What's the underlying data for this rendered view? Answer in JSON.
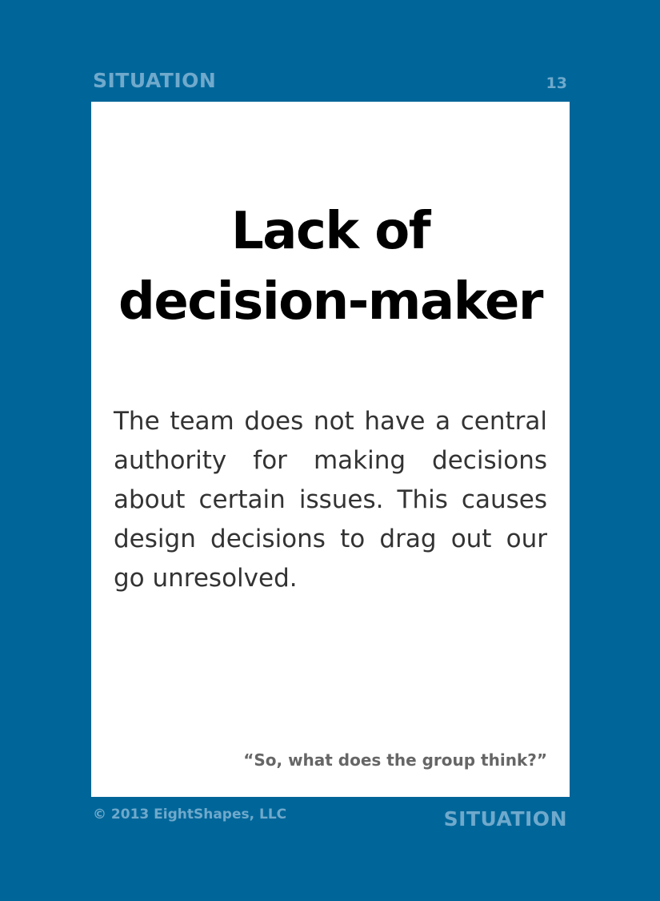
{
  "header": {
    "category": "SITUATION",
    "card_number": "13"
  },
  "card": {
    "title_line1": "Lack of",
    "title_line2": "decision-maker",
    "body": "The team does not have a central authority for making decisions about certain issues. This causes design decisions to drag out our go unresolved.",
    "quote": "“So, what does the group think?”"
  },
  "footer": {
    "copyright": "© 2013 EightShapes, LLC",
    "category": "SITUATION"
  },
  "colors": {
    "background": "#006699",
    "label": "#6fa9cc",
    "card": "#ffffff",
    "title": "#000000",
    "body": "#333333",
    "quote": "#666666"
  }
}
